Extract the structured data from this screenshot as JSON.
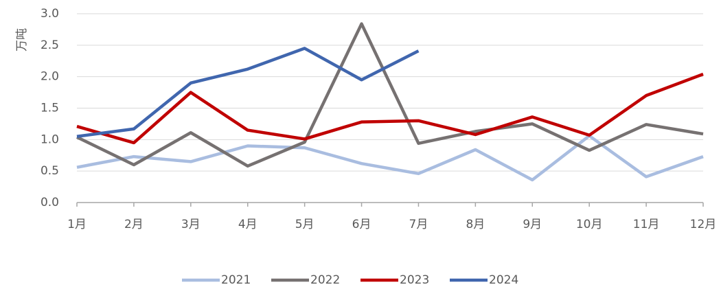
{
  "chart_data": {
    "type": "line",
    "y_label": "万吨",
    "categories": [
      "1月",
      "2月",
      "3月",
      "4月",
      "5月",
      "6月",
      "7月",
      "8月",
      "9月",
      "10月",
      "11月",
      "12月"
    ],
    "series": [
      {
        "name": "2021",
        "color": "#a9bde0",
        "values": [
          0.56,
          0.73,
          0.65,
          0.9,
          0.87,
          0.62,
          0.46,
          0.84,
          0.36,
          1.06,
          0.41,
          0.73
        ]
      },
      {
        "name": "2022",
        "color": "#767171",
        "values": [
          1.04,
          0.6,
          1.11,
          0.58,
          0.96,
          2.84,
          0.94,
          1.13,
          1.25,
          0.83,
          1.24,
          1.09
        ]
      },
      {
        "name": "2023",
        "color": "#c00000",
        "values": [
          1.21,
          0.95,
          1.75,
          1.15,
          1.01,
          1.28,
          1.3,
          1.08,
          1.36,
          1.07,
          1.7,
          2.04
        ]
      },
      {
        "name": "2024",
        "color": "#4066ae",
        "values": [
          1.05,
          1.17,
          1.9,
          2.12,
          2.45,
          1.95,
          2.41,
          null,
          null,
          null,
          null,
          null
        ]
      }
    ],
    "ylim": [
      0,
      3
    ],
    "yticks": [
      {
        "value": 0,
        "label": "0.0"
      },
      0.5,
      {
        "value": 1,
        "label": "1.0"
      },
      1.5,
      {
        "value": 2,
        "label": "2.0"
      },
      2.5,
      {
        "value": 3,
        "label": "3.0"
      }
    ],
    "grid": true,
    "legend": "bottom"
  }
}
